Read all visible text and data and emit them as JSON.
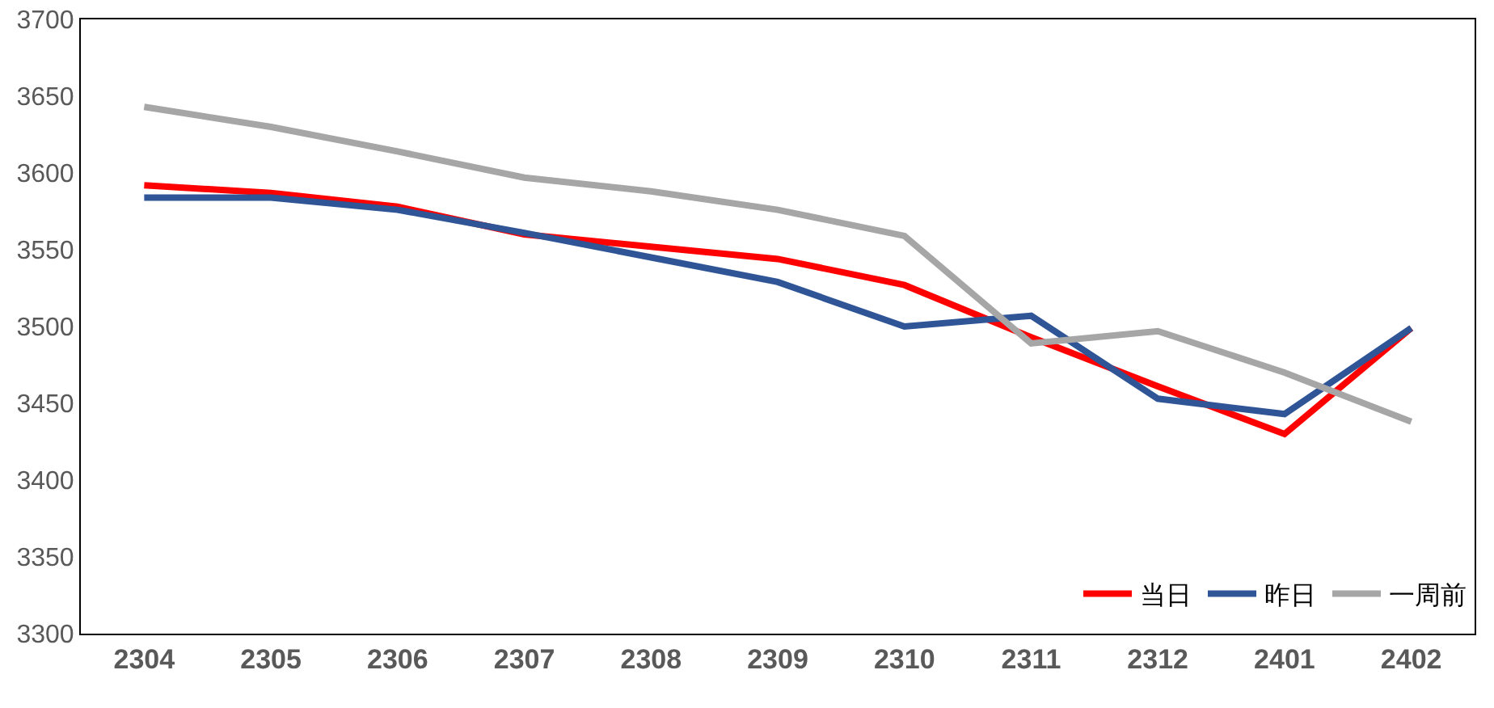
{
  "chart_data": {
    "type": "line",
    "categories": [
      "2304",
      "2305",
      "2306",
      "2307",
      "2308",
      "2309",
      "2310",
      "2311",
      "2312",
      "2401",
      "2402"
    ],
    "series": [
      {
        "name": "当日",
        "color": "#ff0000",
        "values": [
          3592,
          3587,
          3578,
          3560,
          3552,
          3544,
          3527,
          3493,
          3461,
          3430,
          3499
        ]
      },
      {
        "name": "昨日",
        "color": "#2f5597",
        "values": [
          3584,
          3584,
          3576,
          3561,
          3545,
          3529,
          3500,
          3507,
          3453,
          3443,
          3499
        ]
      },
      {
        "name": "一周前",
        "color": "#a6a6a6",
        "values": [
          3643,
          3630,
          3614,
          3597,
          3588,
          3576,
          3559,
          3489,
          3497,
          3470,
          3438
        ]
      }
    ],
    "ylim": [
      3300,
      3700
    ],
    "yticks": [
      3300,
      3350,
      3400,
      3450,
      3500,
      3550,
      3600,
      3650,
      3700
    ],
    "grid": false,
    "legend": "bottom right",
    "marker": "none",
    "line_style": "solid"
  }
}
